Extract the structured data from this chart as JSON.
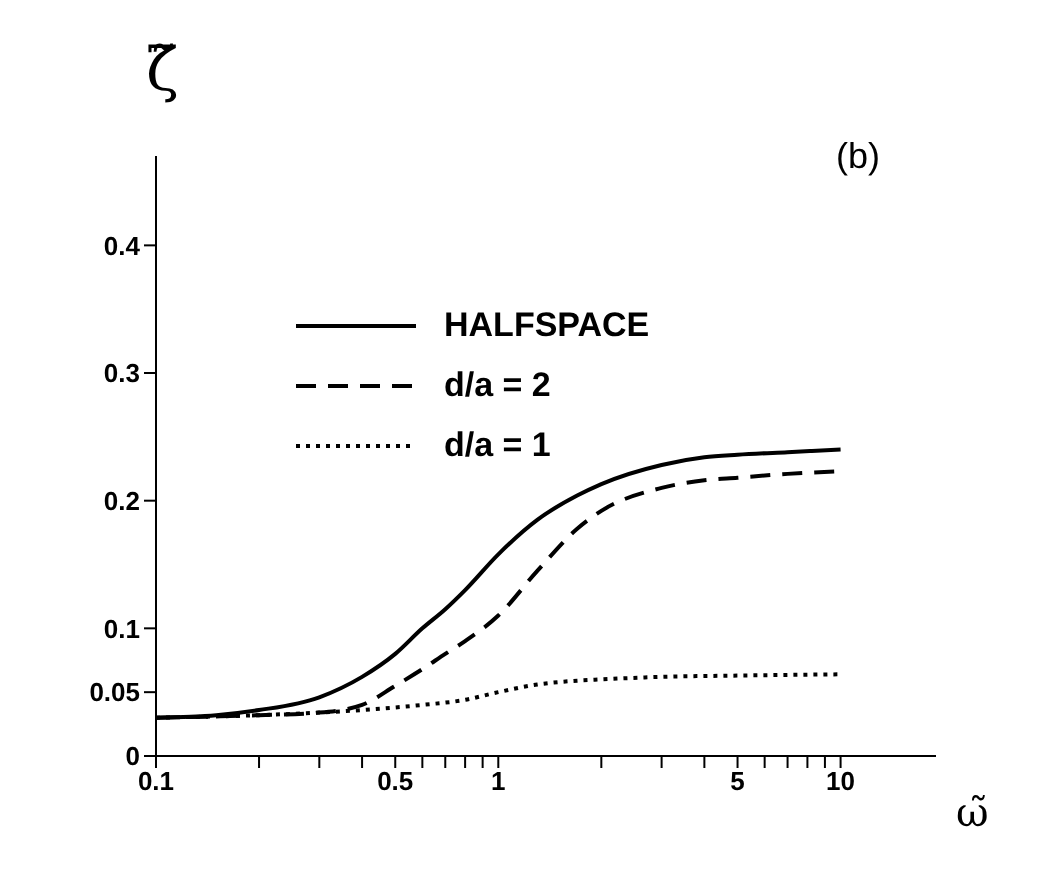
{
  "chart_data": {
    "type": "line",
    "xlabel": "ω̃",
    "ylabel": "ζ̃",
    "annotations": [
      "(b)"
    ],
    "log": "x",
    "xlim": [
      0.1,
      19
    ],
    "ylim": [
      0,
      0.47
    ],
    "xticks": [
      0.1,
      {
        "value": 0.2,
        "label": null
      },
      {
        "value": 0.3,
        "label": null
      },
      {
        "value": 0.4,
        "label": null
      },
      0.5,
      {
        "value": 0.6,
        "label": null
      },
      {
        "value": 0.7,
        "label": null
      },
      {
        "value": 0.8,
        "label": null
      },
      {
        "value": 0.9,
        "label": null
      },
      1,
      {
        "value": 2,
        "label": null
      },
      {
        "value": 3,
        "label": null
      },
      {
        "value": 4,
        "label": null
      },
      5,
      {
        "value": 6,
        "label": null
      },
      {
        "value": 7,
        "label": null
      },
      {
        "value": 8,
        "label": null
      },
      {
        "value": 9,
        "label": null
      },
      10
    ],
    "yticks": [
      0,
      0.05,
      0.1,
      0.2,
      0.3,
      0.4
    ],
    "legend": "top left",
    "grid": false,
    "series": [
      {
        "name": "HALFSPACE",
        "color": "#000000",
        "line_style": "solid",
        "x": [
          0.1,
          0.15,
          0.2,
          0.3,
          0.4,
          0.5,
          0.6,
          0.7,
          0.8,
          1,
          1.3,
          1.7,
          2,
          3,
          4,
          5,
          7,
          10
        ],
        "values": [
          0.03,
          0.032,
          0.036,
          0.046,
          0.062,
          0.08,
          0.1,
          0.115,
          0.13,
          0.158,
          0.185,
          0.204,
          0.213,
          0.228,
          0.234,
          0.236,
          0.238,
          0.24
        ]
      },
      {
        "name": "d/a = 2",
        "color": "#000000",
        "line_style": "dashed",
        "x": [
          0.1,
          0.2,
          0.3,
          0.4,
          0.5,
          0.6,
          0.7,
          0.8,
          1,
          1.3,
          1.7,
          2,
          3,
          4,
          5,
          7,
          10
        ],
        "values": [
          0.03,
          0.032,
          0.034,
          0.04,
          0.055,
          0.068,
          0.08,
          0.09,
          0.11,
          0.145,
          0.178,
          0.192,
          0.21,
          0.216,
          0.218,
          0.221,
          0.223
        ]
      },
      {
        "name": "d/a = 1",
        "color": "#000000",
        "line_style": "dotted",
        "x": [
          0.1,
          0.2,
          0.3,
          0.4,
          0.5,
          0.6,
          0.8,
          1,
          1.3,
          1.7,
          2,
          3,
          5,
          10
        ],
        "values": [
          0.03,
          0.032,
          0.034,
          0.036,
          0.038,
          0.04,
          0.044,
          0.05,
          0.056,
          0.059,
          0.06,
          0.062,
          0.063,
          0.064
        ]
      }
    ]
  }
}
